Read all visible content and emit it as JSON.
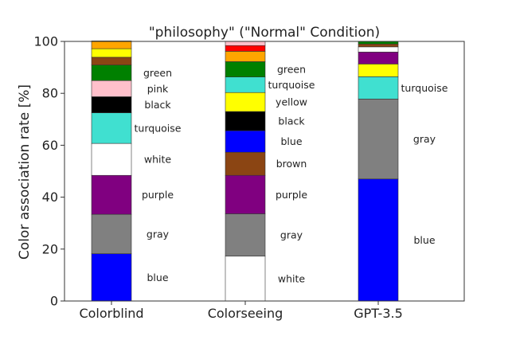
{
  "chart_data": {
    "type": "bar",
    "stacked": true,
    "title": "\"philosophy\" (\"Normal\" Condition)",
    "xlabel": "",
    "ylabel": "Color association rate [%]",
    "ylim": [
      0,
      100
    ],
    "yticks": [
      0,
      20,
      40,
      60,
      80,
      100
    ],
    "grid": false,
    "categories": [
      "Colorblind",
      "Colorseeing",
      "GPT-3.5"
    ],
    "stacks": [
      {
        "category": "Colorblind",
        "segments": [
          {
            "name": "blue",
            "value": 18.2,
            "color": "#0000ff",
            "label": "blue"
          },
          {
            "name": "gray",
            "value": 15.2,
            "color": "#808080",
            "label": "gray"
          },
          {
            "name": "purple",
            "value": 15.0,
            "color": "#800080",
            "label": "purple"
          },
          {
            "name": "white",
            "value": 12.3,
            "color": "#ffffff",
            "label": "white"
          },
          {
            "name": "turquoise",
            "value": 11.8,
            "color": "#40e0d0",
            "label": "turquoise"
          },
          {
            "name": "black",
            "value": 6.2,
            "color": "#000000",
            "label": "black"
          },
          {
            "name": "pink",
            "value": 6.2,
            "color": "#ffc0cb",
            "label": "pink"
          },
          {
            "name": "green",
            "value": 6.0,
            "color": "#008000",
            "label": "green"
          },
          {
            "name": "brown",
            "value": 3.0,
            "color": "#8b4513",
            "label": ""
          },
          {
            "name": "yellow",
            "value": 3.3,
            "color": "#ffff00",
            "label": ""
          },
          {
            "name": "orange",
            "value": 3.0,
            "color": "#ffa500",
            "label": ""
          }
        ]
      },
      {
        "category": "Colorseeing",
        "segments": [
          {
            "name": "white",
            "value": 17.3,
            "color": "#ffffff",
            "label": "white"
          },
          {
            "name": "gray",
            "value": 16.3,
            "color": "#808080",
            "label": "gray"
          },
          {
            "name": "purple",
            "value": 14.8,
            "color": "#800080",
            "label": "purple"
          },
          {
            "name": "brown",
            "value": 8.9,
            "color": "#8b4513",
            "label": "brown"
          },
          {
            "name": "blue",
            "value": 8.3,
            "color": "#0000ff",
            "label": "blue"
          },
          {
            "name": "black",
            "value": 7.4,
            "color": "#000000",
            "label": "black"
          },
          {
            "name": "yellow",
            "value": 7.3,
            "color": "#ffff00",
            "label": "yellow"
          },
          {
            "name": "turquoise",
            "value": 6.0,
            "color": "#40e0d0",
            "label": "turquoise"
          },
          {
            "name": "green",
            "value": 5.9,
            "color": "#008000",
            "label": "green"
          },
          {
            "name": "orange",
            "value": 4.0,
            "color": "#ffa500",
            "label": ""
          },
          {
            "name": "red",
            "value": 2.2,
            "color": "#ff0000",
            "label": ""
          },
          {
            "name": "pink",
            "value": 1.6,
            "color": "#ffc0cb",
            "label": ""
          }
        ]
      },
      {
        "category": "GPT-3.5",
        "segments": [
          {
            "name": "blue",
            "value": 47.0,
            "color": "#0000ff",
            "label": "blue"
          },
          {
            "name": "gray",
            "value": 30.8,
            "color": "#808080",
            "label": "gray"
          },
          {
            "name": "turquoise",
            "value": 8.6,
            "color": "#40e0d0",
            "label": "turquoise"
          },
          {
            "name": "yellow",
            "value": 4.9,
            "color": "#ffff00",
            "label": ""
          },
          {
            "name": "purple",
            "value": 4.6,
            "color": "#800080",
            "label": ""
          },
          {
            "name": "white",
            "value": 2.0,
            "color": "#ffffff",
            "label": ""
          },
          {
            "name": "brown",
            "value": 1.1,
            "color": "#8b4513",
            "label": ""
          },
          {
            "name": "green",
            "value": 1.0,
            "color": "#008000",
            "label": ""
          }
        ]
      }
    ]
  }
}
